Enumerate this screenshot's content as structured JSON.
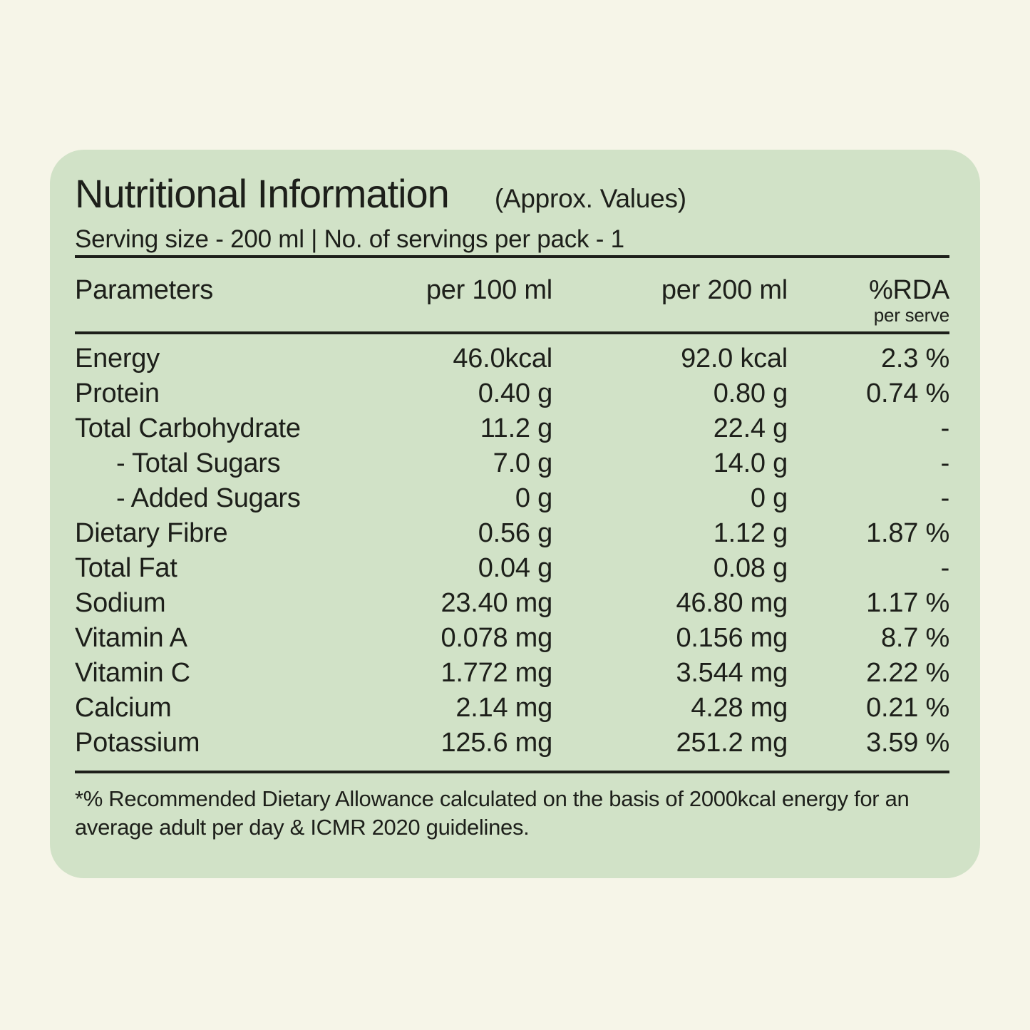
{
  "colors": {
    "page_background": "#F6F5E8",
    "card_background": "#D1E2C7",
    "text": "#1D1F1A"
  },
  "card": {
    "title": "Nutritional Information",
    "approx_label": "(Approx. Values)",
    "serving_info": "Serving size - 200 ml | No. of servings per pack - 1",
    "footnote": "*% Recommended Dietary Allowance calculated on the basis of 2000kcal energy for an average adult per day & ICMR 2020 guidelines."
  },
  "table": {
    "headers": {
      "parameters": "Parameters",
      "per_100": "per 100 ml",
      "per_200": "per 200 ml",
      "rda": "%RDA",
      "rda_sub": "per serve"
    },
    "rows": [
      {
        "label": "Energy",
        "indent": false,
        "per_100": "46.0kcal",
        "per_200": "92.0 kcal",
        "rda": "2.3 %"
      },
      {
        "label": "Protein",
        "indent": false,
        "per_100": "0.40 g",
        "per_200": "0.80 g",
        "rda": "0.74 %"
      },
      {
        "label": "Total Carbohydrate",
        "indent": false,
        "per_100": "11.2 g",
        "per_200": "22.4 g",
        "rda": "-"
      },
      {
        "label": "- Total Sugars",
        "indent": true,
        "per_100": "7.0 g",
        "per_200": "14.0 g",
        "rda": "-"
      },
      {
        "label": "- Added Sugars",
        "indent": true,
        "per_100": "0 g",
        "per_200": "0 g",
        "rda": "-"
      },
      {
        "label": "Dietary Fibre",
        "indent": false,
        "per_100": "0.56 g",
        "per_200": "1.12 g",
        "rda": "1.87 %"
      },
      {
        "label": "Total Fat",
        "indent": false,
        "per_100": "0.04 g",
        "per_200": "0.08 g",
        "rda": "-"
      },
      {
        "label": "Sodium",
        "indent": false,
        "per_100": "23.40 mg",
        "per_200": "46.80 mg",
        "rda": "1.17 %"
      },
      {
        "label": "Vitamin A",
        "indent": false,
        "per_100": "0.078 mg",
        "per_200": "0.156 mg",
        "rda": "8.7 %"
      },
      {
        "label": "Vitamin C",
        "indent": false,
        "per_100": "1.772 mg",
        "per_200": "3.544 mg",
        "rda": "2.22 %"
      },
      {
        "label": "Calcium",
        "indent": false,
        "per_100": "2.14 mg",
        "per_200": "4.28 mg",
        "rda": "0.21 %"
      },
      {
        "label": "Potassium",
        "indent": false,
        "per_100": "125.6 mg",
        "per_200": "251.2 mg",
        "rda": "3.59 %"
      }
    ]
  }
}
